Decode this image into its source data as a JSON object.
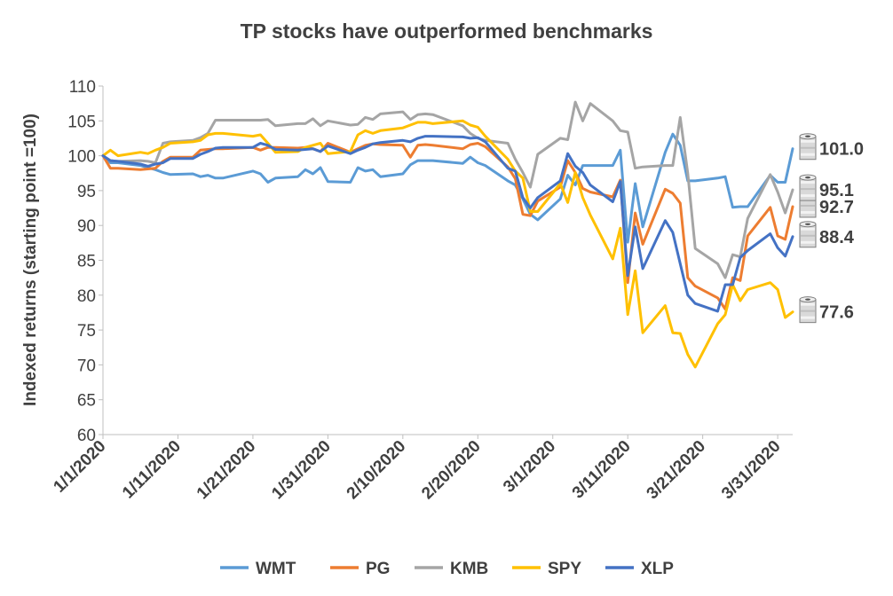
{
  "chart_data": {
    "type": "line",
    "title": "TP stocks have outperformed benchmarks",
    "ylabel": "Indexed returns (starting point =100)",
    "xlabel": "",
    "ylim": [
      60,
      110
    ],
    "yticks": [
      60,
      65,
      70,
      75,
      80,
      85,
      90,
      95,
      100,
      105,
      110
    ],
    "x_tick_labels": [
      "1/1/2020",
      "1/11/2020",
      "1/21/2020",
      "1/31/2020",
      "2/10/2020",
      "2/20/2020",
      "3/1/2020",
      "3/11/2020",
      "3/21/2020",
      "3/31/2020"
    ],
    "x_dates": [
      "1/1",
      "1/2",
      "1/3",
      "1/6",
      "1/7",
      "1/8",
      "1/9",
      "1/10",
      "1/13",
      "1/14",
      "1/15",
      "1/16",
      "1/17",
      "1/21",
      "1/22",
      "1/23",
      "1/24",
      "1/27",
      "1/28",
      "1/29",
      "1/30",
      "1/31",
      "2/3",
      "2/4",
      "2/5",
      "2/6",
      "2/7",
      "2/10",
      "2/11",
      "2/12",
      "2/13",
      "2/14",
      "2/18",
      "2/19",
      "2/20",
      "2/21",
      "2/24",
      "2/25",
      "2/26",
      "2/27",
      "2/28",
      "3/2",
      "3/3",
      "3/4",
      "3/5",
      "3/6",
      "3/9",
      "3/10",
      "3/11",
      "3/12",
      "3/13",
      "3/16",
      "3/17",
      "3/18",
      "3/19",
      "3/20",
      "3/23",
      "3/24",
      "3/25",
      "3/26",
      "3/27",
      "3/30",
      "3/31",
      "4/1",
      "4/2"
    ],
    "grid": false,
    "legend_position": "bottom",
    "series": [
      {
        "name": "WMT",
        "color": "#5B9BD5",
        "end_label": "101.0",
        "values": [
          100,
          99.0,
          99.0,
          98.6,
          98.3,
          98.0,
          97.6,
          97.3,
          97.4,
          97.0,
          97.2,
          96.8,
          96.8,
          97.8,
          97.4,
          96.2,
          96.8,
          97.0,
          98.0,
          97.4,
          98.3,
          96.3,
          96.2,
          98.3,
          97.8,
          98.0,
          97.0,
          97.4,
          98.7,
          99.3,
          99.3,
          99.3,
          98.9,
          99.8,
          99.0,
          98.6,
          96.4,
          95.8,
          93.8,
          91.6,
          90.8,
          93.8,
          97.2,
          95.8,
          98.6,
          98.6,
          98.6,
          100.8,
          87.6,
          96.0,
          89.8,
          100.5,
          103.1,
          101.5,
          96.4,
          96.4,
          96.8,
          97.0,
          92.6,
          92.7,
          92.7,
          97.2,
          96.2,
          96.2,
          101.0
        ]
      },
      {
        "name": "PG",
        "color": "#ED7D31",
        "end_label": "92.7",
        "values": [
          100,
          98.2,
          98.2,
          98.0,
          98.1,
          98.2,
          99.2,
          99.8,
          99.8,
          100.8,
          100.9,
          101.0,
          101.0,
          101.2,
          100.8,
          101.2,
          101.2,
          101.1,
          101.2,
          101.0,
          100.6,
          101.8,
          100.5,
          101.0,
          101.5,
          101.7,
          101.6,
          101.5,
          99.8,
          101.5,
          101.6,
          101.5,
          101.0,
          101.6,
          101.8,
          101.3,
          98.4,
          96.7,
          91.6,
          91.4,
          93.5,
          95.5,
          99.3,
          97.6,
          95.3,
          94.8,
          94.1,
          96.5,
          81.8,
          91.8,
          87.3,
          95.2,
          94.6,
          93.2,
          82.5,
          81.3,
          79.6,
          78.0,
          82.5,
          82.1,
          88.5,
          92.6,
          88.5,
          88.0,
          92.7
        ]
      },
      {
        "name": "KMB",
        "color": "#A5A5A5",
        "end_label": "95.1",
        "values": [
          100,
          99.3,
          99.2,
          99.3,
          99.2,
          99.0,
          101.8,
          102.0,
          102.2,
          102.6,
          103.2,
          105.1,
          105.1,
          105.1,
          105.1,
          105.2,
          104.3,
          104.6,
          104.6,
          105.3,
          104.3,
          105.0,
          104.4,
          104.5,
          105.5,
          105.2,
          106.0,
          106.3,
          105.2,
          105.9,
          106.0,
          105.9,
          104.3,
          103.2,
          102.5,
          102.2,
          101.8,
          99.5,
          97.6,
          95.5,
          100.2,
          102.5,
          102.3,
          107.7,
          105.0,
          107.5,
          105.0,
          103.6,
          103.4,
          98.2,
          98.4,
          98.6,
          98.6,
          105.5,
          97.5,
          86.7,
          84.5,
          82.5,
          85.8,
          85.5,
          91.0,
          97.3,
          94.8,
          91.8,
          95.1
        ]
      },
      {
        "name": "SPY",
        "color": "#FFC000",
        "end_label": "77.6",
        "values": [
          100,
          100.8,
          100.0,
          100.5,
          100.3,
          100.8,
          101.2,
          101.8,
          102.0,
          102.2,
          103.0,
          103.2,
          103.2,
          102.8,
          103.0,
          101.8,
          100.5,
          100.6,
          101.2,
          101.5,
          101.8,
          100.3,
          100.6,
          103.0,
          103.6,
          103.2,
          103.6,
          104.0,
          104.4,
          104.8,
          104.8,
          104.6,
          105.0,
          104.4,
          104.1,
          102.8,
          99.5,
          97.8,
          96.8,
          92.0,
          92.0,
          96.0,
          93.3,
          97.6,
          94.0,
          91.5,
          85.2,
          89.6,
          77.2,
          83.5,
          74.6,
          78.5,
          74.6,
          74.5,
          71.5,
          69.7,
          75.9,
          77.2,
          81.5,
          79.2,
          80.8,
          81.8,
          80.8,
          76.8,
          77.6
        ]
      },
      {
        "name": "XLP",
        "color": "#4472C4",
        "end_label": "88.4",
        "values": [
          100,
          99.3,
          99.2,
          98.8,
          98.5,
          98.8,
          99.0,
          99.6,
          99.6,
          100.2,
          100.6,
          101.1,
          101.2,
          101.2,
          101.8,
          101.5,
          100.9,
          100.8,
          100.9,
          101.0,
          100.6,
          101.4,
          100.3,
          100.8,
          101.2,
          101.7,
          101.9,
          102.2,
          102.0,
          102.5,
          102.8,
          102.8,
          102.7,
          102.5,
          102.6,
          102.0,
          98.2,
          97.8,
          94.0,
          92.5,
          94.0,
          96.4,
          100.3,
          98.5,
          97.6,
          95.8,
          93.4,
          96.3,
          82.8,
          89.8,
          83.8,
          90.7,
          89.0,
          84.5,
          80.0,
          78.8,
          77.7,
          81.5,
          81.5,
          85.4,
          86.4,
          88.8,
          86.8,
          85.6,
          88.4
        ]
      }
    ]
  }
}
